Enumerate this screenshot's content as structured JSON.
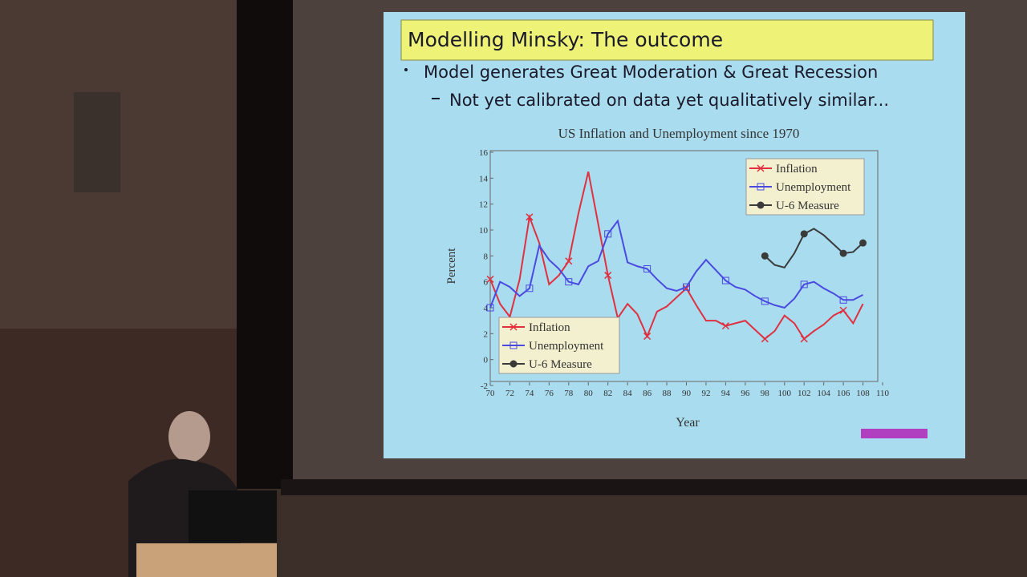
{
  "slide": {
    "title": "Modelling Minsky: The outcome",
    "bullets": [
      "Model generates Great Moderation & Great Recession",
      "Not yet calibrated on data yet qualitatively similar..."
    ]
  },
  "chart_data": {
    "type": "line",
    "title": "US Inflation and Unemployment since 1970",
    "xlabel": "Year",
    "ylabel": "Percent",
    "x": [
      70,
      71,
      72,
      73,
      74,
      75,
      76,
      77,
      78,
      79,
      80,
      81,
      82,
      83,
      84,
      85,
      86,
      87,
      88,
      89,
      90,
      91,
      92,
      93,
      94,
      95,
      96,
      97,
      98,
      99,
      100,
      101,
      102,
      103,
      104,
      105,
      106,
      107,
      108
    ],
    "series": [
      {
        "name": "Inflation",
        "color": "#e03040",
        "marker": "x",
        "values": [
          6.2,
          4.3,
          3.3,
          6.2,
          11,
          9,
          5.8,
          6.5,
          7.6,
          11.3,
          14.5,
          10.5,
          6.5,
          3.2,
          4.3,
          3.5,
          1.8,
          3.7,
          4.1,
          4.8,
          5.5,
          4.2,
          3.0,
          3.0,
          2.6,
          2.8,
          3.0,
          2.3,
          1.6,
          2.2,
          3.4,
          2.8,
          1.6,
          2.2,
          2.7,
          3.4,
          3.8,
          2.8,
          4.3
        ]
      },
      {
        "name": "Unemployment",
        "color": "#4a4ae0",
        "marker": "square",
        "values": [
          4.0,
          6.0,
          5.6,
          4.9,
          5.5,
          8.8,
          7.7,
          7.0,
          6.0,
          5.8,
          7.2,
          7.6,
          9.7,
          10.7,
          7.5,
          7.2,
          7.0,
          6.2,
          5.5,
          5.3,
          5.6,
          6.8,
          7.7,
          6.9,
          6.1,
          5.6,
          5.4,
          4.9,
          4.5,
          4.2,
          4.0,
          4.7,
          5.8,
          6.0,
          5.5,
          5.1,
          4.6,
          4.6,
          5.0
        ]
      },
      {
        "name": "U-6 Measure",
        "color": "#3a3a3a",
        "marker": "circle",
        "values": [
          null,
          null,
          null,
          null,
          null,
          null,
          null,
          null,
          null,
          null,
          null,
          null,
          null,
          null,
          null,
          null,
          null,
          null,
          null,
          null,
          null,
          null,
          null,
          null,
          null,
          null,
          null,
          null,
          8,
          7.3,
          7.1,
          8.2,
          9.7,
          10.1,
          9.6,
          8.9,
          8.2,
          8.3,
          9.0
        ]
      }
    ],
    "xlim": [
      70,
      110
    ],
    "ylim": [
      -2,
      16
    ],
    "xticks": [
      70,
      72,
      74,
      76,
      78,
      80,
      82,
      84,
      86,
      88,
      90,
      92,
      94,
      96,
      98,
      100,
      102,
      104,
      106,
      108,
      110
    ],
    "yticks": [
      -2,
      0,
      2,
      4,
      6,
      8,
      10,
      12,
      14,
      16
    ],
    "legend": [
      "upper right",
      "lower left"
    ]
  }
}
